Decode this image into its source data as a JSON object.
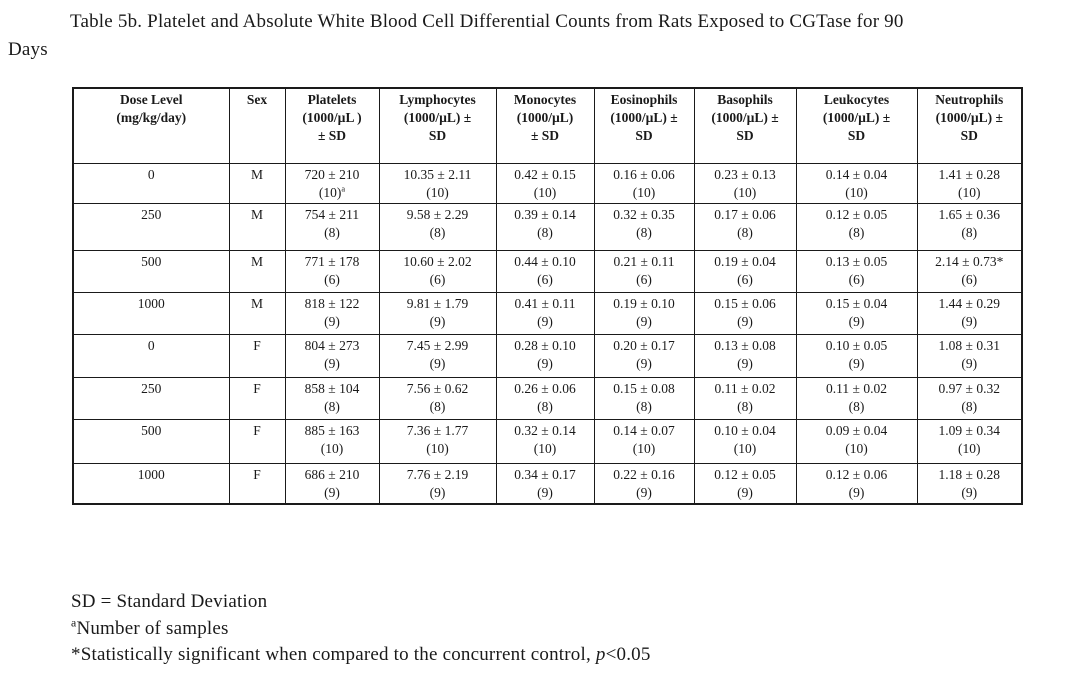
{
  "title_lines": [
    "Table 5b. Platelet and Absolute White Blood Cell Differential Counts from Rats Exposed to CGTase for 90",
    "Days"
  ],
  "table": {
    "columns": [
      {
        "id": "dose",
        "lines": [
          "Dose Level",
          "(mg/kg/day)"
        ]
      },
      {
        "id": "sex",
        "lines": [
          "Sex"
        ]
      },
      {
        "id": "platelets",
        "lines": [
          "Platelets",
          "(1000/µL )",
          "± SD"
        ]
      },
      {
        "id": "lymphocytes",
        "lines": [
          "Lymphocytes",
          "(1000/µL) ±",
          "SD"
        ]
      },
      {
        "id": "monocytes",
        "lines": [
          "Monocytes",
          "(1000/µL)",
          "± SD"
        ]
      },
      {
        "id": "eosinophils",
        "lines": [
          "Eosinophils",
          "(1000/µL) ±",
          "SD"
        ]
      },
      {
        "id": "basophils",
        "lines": [
          "Basophils",
          "(1000/µL) ±",
          "SD"
        ]
      },
      {
        "id": "leukocytes",
        "lines": [
          "Leukocytes",
          "(1000/µL) ±",
          "SD"
        ]
      },
      {
        "id": "neutrophils",
        "lines": [
          "Neutrophils",
          "(1000/µL) ±",
          "SD"
        ]
      }
    ],
    "rows": [
      {
        "dose": "0",
        "sex": "M",
        "cells": [
          {
            "v": "720 ± 210",
            "n": "(10)",
            "n_sup": "a"
          },
          {
            "v": "10.35 ± 2.11",
            "n": "(10)"
          },
          {
            "v": "0.42 ± 0.15",
            "n": "(10)"
          },
          {
            "v": "0.16 ± 0.06",
            "n": "(10)"
          },
          {
            "v": "0.23 ± 0.13",
            "n": "(10)"
          },
          {
            "v": "0.14 ± 0.04",
            "n": "(10)"
          },
          {
            "v": "1.41 ± 0.28",
            "n": "(10)"
          }
        ]
      },
      {
        "dose": "250",
        "sex": "M",
        "cells": [
          {
            "v": "754 ± 211",
            "n": "(8)"
          },
          {
            "v": "9.58 ± 2.29",
            "n": "(8)"
          },
          {
            "v": "0.39 ± 0.14",
            "n": "(8)"
          },
          {
            "v": "0.32 ± 0.35",
            "n": "(8)"
          },
          {
            "v": "0.17 ± 0.06",
            "n": "(8)"
          },
          {
            "v": "0.12 ± 0.05",
            "n": "(8)"
          },
          {
            "v": "1.65 ± 0.36",
            "n": "(8)"
          }
        ]
      },
      {
        "dose": "500",
        "sex": "M",
        "cells": [
          {
            "v": "771 ± 178",
            "n": "(6)"
          },
          {
            "v": "10.60 ± 2.02",
            "n": "(6)"
          },
          {
            "v": "0.44 ± 0.10",
            "n": "(6)"
          },
          {
            "v": "0.21 ± 0.11",
            "n": "(6)"
          },
          {
            "v": "0.19 ± 0.04",
            "n": "(6)"
          },
          {
            "v": "0.13 ± 0.05",
            "n": "(6)"
          },
          {
            "v": "2.14 ± 0.73*",
            "n": "(6)"
          }
        ]
      },
      {
        "dose": "1000",
        "sex": "M",
        "cells": [
          {
            "v": "818 ± 122",
            "n": "(9)"
          },
          {
            "v": "9.81 ± 1.79",
            "n": "(9)"
          },
          {
            "v": "0.41 ± 0.11",
            "n": "(9)"
          },
          {
            "v": "0.19 ± 0.10",
            "n": "(9)"
          },
          {
            "v": "0.15 ± 0.06",
            "n": "(9)"
          },
          {
            "v": "0.15 ± 0.04",
            "n": "(9)"
          },
          {
            "v": "1.44 ± 0.29",
            "n": "(9)"
          }
        ]
      },
      {
        "dose": "0",
        "sex": "F",
        "cells": [
          {
            "v": "804 ± 273",
            "n": "(9)"
          },
          {
            "v": "7.45 ± 2.99",
            "n": "(9)"
          },
          {
            "v": "0.28 ± 0.10",
            "n": "(9)"
          },
          {
            "v": "0.20 ± 0.17",
            "n": "(9)"
          },
          {
            "v": "0.13 ± 0.08",
            "n": "(9)"
          },
          {
            "v": "0.10 ± 0.05",
            "n": "(9)"
          },
          {
            "v": "1.08 ± 0.31",
            "n": "(9)"
          }
        ]
      },
      {
        "dose": "250",
        "sex": "F",
        "cells": [
          {
            "v": "858 ± 104",
            "n": "(8)"
          },
          {
            "v": "7.56 ± 0.62",
            "n": "(8)"
          },
          {
            "v": "0.26 ± 0.06",
            "n": "(8)"
          },
          {
            "v": "0.15 ± 0.08",
            "n": "(8)"
          },
          {
            "v": "0.11 ± 0.02",
            "n": "(8)"
          },
          {
            "v": "0.11 ± 0.02",
            "n": "(8)"
          },
          {
            "v": "0.97 ± 0.32",
            "n": "(8)"
          }
        ]
      },
      {
        "dose": "500",
        "sex": "F",
        "cells": [
          {
            "v": "885 ± 163",
            "n": "(10)"
          },
          {
            "v": "7.36 ± 1.77",
            "n": "(10)"
          },
          {
            "v": "0.32 ± 0.14",
            "n": "(10)"
          },
          {
            "v": "0.14 ± 0.07",
            "n": "(10)"
          },
          {
            "v": "0.10 ± 0.04",
            "n": "(10)"
          },
          {
            "v": "0.09 ± 0.04",
            "n": "(10)"
          },
          {
            "v": "1.09 ± 0.34",
            "n": "(10)"
          }
        ]
      },
      {
        "dose": "1000",
        "sex": "F",
        "cells": [
          {
            "v": "686 ± 210",
            "n": "(9)"
          },
          {
            "v": "7.76 ± 2.19",
            "n": "(9)"
          },
          {
            "v": "0.34 ± 0.17",
            "n": "(9)"
          },
          {
            "v": "0.22 ± 0.16",
            "n": "(9)"
          },
          {
            "v": "0.12 ± 0.05",
            "n": "(9)"
          },
          {
            "v": "0.12 ± 0.06",
            "n": "(9)"
          },
          {
            "v": "1.18 ± 0.28",
            "n": "(9)"
          }
        ]
      }
    ]
  },
  "footnotes": [
    [
      {
        "t": "SD = Standard Deviation"
      }
    ],
    [
      {
        "t": "a",
        "sup": true
      },
      {
        "t": "Number of samples"
      }
    ],
    [
      {
        "t": "*Statistically significant when compared to the concurrent control, "
      },
      {
        "t": "p",
        "italic": true
      },
      {
        "t": "<0.05"
      }
    ]
  ]
}
